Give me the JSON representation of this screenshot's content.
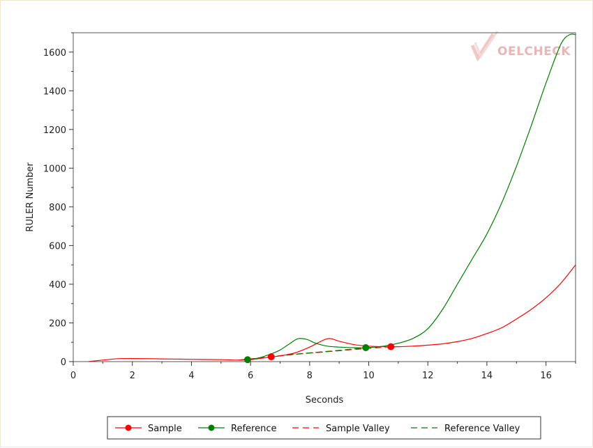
{
  "chart_data": {
    "type": "line",
    "xlabel": "Seconds",
    "ylabel": "RULER Number",
    "xlim": [
      0,
      17
    ],
    "ylim": [
      0,
      1700
    ],
    "x_ticks": [
      0,
      2,
      4,
      6,
      8,
      10,
      12,
      14,
      16
    ],
    "y_ticks": [
      0,
      200,
      400,
      600,
      800,
      1000,
      1200,
      1400,
      1600
    ],
    "grid": false,
    "legend_position": "bottom",
    "watermark": "OELCHECK",
    "series": [
      {
        "name": "Sample",
        "color": "#ff0000",
        "style": "solid",
        "x": [
          0.5,
          1.0,
          1.5,
          2.0,
          3.0,
          4.0,
          5.0,
          5.6,
          6.0,
          6.5,
          7.0,
          7.5,
          8.0,
          8.6,
          9.0,
          9.5,
          10.0,
          10.5,
          11.0,
          11.5,
          12.0,
          12.5,
          13.0,
          13.5,
          14.0,
          14.5,
          15.0,
          15.5,
          16.0,
          16.5,
          17.0
        ],
        "y": [
          0,
          8,
          15,
          16,
          14,
          12,
          10,
          8,
          10,
          20,
          30,
          45,
          75,
          118,
          105,
          88,
          80,
          77,
          77,
          80,
          85,
          92,
          103,
          120,
          145,
          175,
          220,
          270,
          330,
          405,
          500
        ],
        "markers": [
          {
            "x": 6.7,
            "y": 25
          },
          {
            "x": 10.75,
            "y": 77
          }
        ]
      },
      {
        "name": "Reference",
        "color": "#008000",
        "style": "solid",
        "x": [
          5.9,
          6.3,
          6.7,
          7.0,
          7.3,
          7.6,
          7.9,
          8.2,
          8.6,
          9.0,
          9.5,
          9.9,
          10.5,
          11.0,
          11.5,
          12.0,
          12.5,
          13.0,
          13.5,
          14.0,
          14.5,
          15.0,
          15.5,
          16.0,
          16.5,
          16.8,
          17.0
        ],
        "y": [
          10,
          20,
          40,
          60,
          90,
          118,
          115,
          95,
          80,
          75,
          72,
          72,
          80,
          95,
          120,
          170,
          270,
          400,
          530,
          660,
          820,
          1010,
          1220,
          1440,
          1640,
          1690,
          1690
        ],
        "markers": [
          {
            "x": 5.9,
            "y": 10
          },
          {
            "x": 9.9,
            "y": 72
          }
        ]
      },
      {
        "name": "Sample Valley",
        "color": "#ff0000",
        "style": "dashed",
        "x": [
          5.6,
          6.7,
          7.5,
          8.5,
          9.5,
          10.75
        ],
        "y": [
          8,
          25,
          38,
          50,
          63,
          77
        ]
      },
      {
        "name": "Reference Valley",
        "color": "#008000",
        "style": "dashed",
        "x": [
          5.9,
          7.0,
          8.0,
          9.0,
          9.9
        ],
        "y": [
          10,
          30,
          45,
          58,
          72
        ]
      }
    ]
  }
}
